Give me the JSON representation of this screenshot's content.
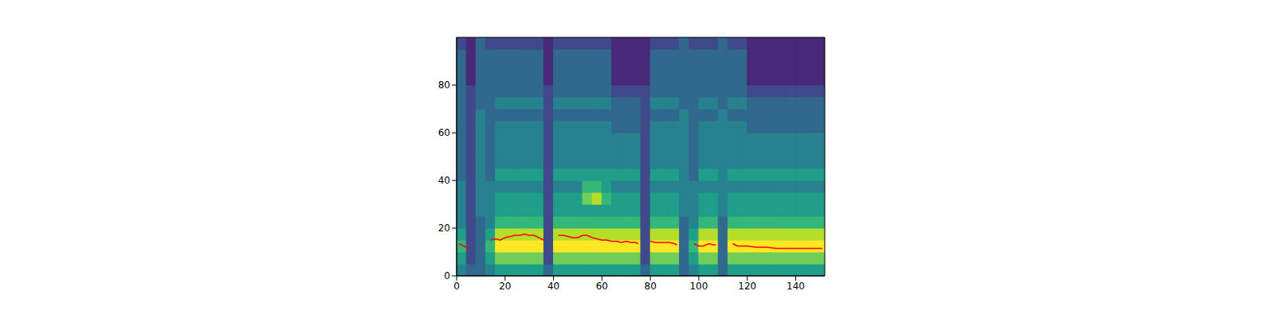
{
  "chart_data": {
    "type": "heatmap",
    "xlim": [
      0,
      152
    ],
    "ylim": [
      0,
      100
    ],
    "xticks": [
      0,
      20,
      40,
      60,
      80,
      100,
      120,
      140
    ],
    "yticks": [
      0,
      20,
      40,
      60,
      80
    ],
    "tick_labels": true,
    "cells": {
      "x_edges": [
        0,
        4,
        8,
        12,
        16,
        20,
        24,
        28,
        32,
        36,
        40,
        44,
        48,
        52,
        56,
        60,
        64,
        68,
        72,
        76,
        80,
        84,
        88,
        92,
        96,
        100,
        104,
        108,
        112,
        116,
        120,
        124,
        128,
        132,
        136,
        140,
        144,
        148,
        152
      ],
      "y_edges": [
        0,
        5,
        10,
        15,
        20,
        25,
        30,
        35,
        40,
        45,
        50,
        55,
        60,
        65,
        70,
        75,
        80,
        85,
        90,
        95,
        100
      ],
      "color_range": [
        0,
        9
      ],
      "values": [
        [
          4,
          3,
          3,
          4,
          5,
          5,
          5,
          5,
          5,
          3,
          5,
          5,
          5,
          5,
          5,
          5,
          5,
          5,
          5,
          3,
          5,
          5,
          5,
          3,
          4,
          5,
          5,
          3,
          5,
          5,
          5,
          5,
          5,
          5,
          5,
          5,
          5,
          5
        ],
        [
          5,
          2,
          3,
          5,
          7,
          7,
          7,
          7,
          7,
          2,
          7,
          7,
          7,
          7,
          7,
          7,
          7,
          7,
          7,
          2,
          7,
          7,
          7,
          3,
          5,
          7,
          7,
          3,
          7,
          7,
          7,
          7,
          7,
          7,
          7,
          7,
          7,
          7
        ],
        [
          6,
          2,
          3,
          6,
          9,
          9,
          9,
          9,
          9,
          2,
          9,
          9,
          9,
          9,
          9,
          9,
          9,
          9,
          9,
          2,
          9,
          9,
          9,
          3,
          6,
          9,
          9,
          3,
          9,
          9,
          9,
          9,
          9,
          9,
          9,
          9,
          9,
          9
        ],
        [
          5,
          2,
          3,
          5,
          8,
          8,
          8,
          8,
          8,
          2,
          8,
          8,
          8,
          8,
          8,
          8,
          8,
          8,
          8,
          2,
          8,
          8,
          8,
          3,
          5,
          8,
          8,
          3,
          8,
          8,
          8,
          8,
          8,
          8,
          8,
          8,
          8,
          8
        ],
        [
          4,
          2,
          3,
          4,
          6,
          6,
          6,
          6,
          6,
          2,
          6,
          6,
          6,
          6,
          6,
          6,
          6,
          6,
          6,
          2,
          6,
          6,
          6,
          3,
          4,
          6,
          6,
          3,
          6,
          6,
          6,
          6,
          6,
          6,
          6,
          6,
          6,
          6
        ],
        [
          4,
          2,
          4,
          4,
          5,
          5,
          5,
          5,
          5,
          2,
          5,
          5,
          5,
          5,
          5,
          5,
          5,
          5,
          5,
          2,
          5,
          5,
          5,
          4,
          4,
          5,
          5,
          4,
          5,
          5,
          5,
          5,
          5,
          5,
          5,
          5,
          5,
          5
        ],
        [
          4,
          2,
          4,
          4,
          5,
          5,
          5,
          5,
          5,
          2,
          5,
          5,
          5,
          7,
          8,
          6,
          5,
          5,
          5,
          2,
          5,
          5,
          5,
          4,
          4,
          5,
          5,
          4,
          5,
          5,
          5,
          5,
          5,
          5,
          5,
          5,
          5,
          5
        ],
        [
          4,
          2,
          4,
          4,
          4,
          4,
          4,
          4,
          4,
          2,
          4,
          4,
          4,
          6,
          6,
          5,
          4,
          4,
          4,
          2,
          4,
          4,
          4,
          4,
          4,
          4,
          4,
          4,
          4,
          4,
          4,
          4,
          4,
          4,
          4,
          4,
          4,
          4
        ],
        [
          3,
          2,
          4,
          3,
          5,
          5,
          5,
          5,
          5,
          2,
          5,
          5,
          5,
          5,
          5,
          5,
          5,
          5,
          5,
          2,
          5,
          5,
          5,
          4,
          3,
          5,
          5,
          4,
          5,
          5,
          5,
          5,
          5,
          5,
          5,
          5,
          5,
          5
        ],
        [
          3,
          2,
          4,
          3,
          4,
          4,
          4,
          4,
          4,
          2,
          4,
          4,
          4,
          4,
          4,
          4,
          4,
          4,
          4,
          2,
          4,
          4,
          4,
          4,
          3,
          4,
          4,
          4,
          4,
          4,
          4,
          4,
          4,
          4,
          4,
          4,
          4,
          4
        ],
        [
          3,
          2,
          4,
          3,
          4,
          4,
          4,
          4,
          4,
          2,
          4,
          4,
          4,
          4,
          4,
          4,
          4,
          4,
          4,
          2,
          4,
          4,
          4,
          4,
          3,
          4,
          4,
          4,
          4,
          4,
          4,
          4,
          4,
          4,
          4,
          4,
          4,
          4
        ],
        [
          3,
          2,
          4,
          3,
          4,
          4,
          4,
          4,
          4,
          2,
          4,
          4,
          4,
          4,
          4,
          4,
          4,
          4,
          4,
          2,
          4,
          4,
          4,
          4,
          3,
          4,
          4,
          4,
          4,
          4,
          4,
          4,
          4,
          4,
          4,
          4,
          4,
          4
        ],
        [
          3,
          2,
          4,
          3,
          4,
          4,
          4,
          4,
          4,
          2,
          4,
          4,
          4,
          4,
          4,
          4,
          3,
          3,
          3,
          2,
          4,
          4,
          4,
          4,
          3,
          4,
          4,
          4,
          4,
          4,
          3,
          3,
          3,
          3,
          3,
          3,
          3,
          3
        ],
        [
          3,
          2,
          4,
          3,
          3,
          3,
          3,
          3,
          3,
          2,
          3,
          3,
          3,
          3,
          3,
          3,
          3,
          3,
          3,
          2,
          3,
          3,
          3,
          4,
          3,
          3,
          3,
          4,
          3,
          3,
          3,
          3,
          3,
          3,
          3,
          3,
          3,
          3
        ],
        [
          3,
          2,
          3,
          3,
          4,
          4,
          4,
          4,
          4,
          2,
          4,
          4,
          4,
          4,
          4,
          4,
          3,
          3,
          3,
          2,
          4,
          4,
          4,
          3,
          3,
          4,
          4,
          3,
          4,
          4,
          3,
          3,
          3,
          3,
          3,
          3,
          3,
          3
        ],
        [
          3,
          2,
          3,
          3,
          3,
          3,
          3,
          3,
          3,
          2,
          3,
          3,
          3,
          3,
          3,
          3,
          2,
          2,
          2,
          2,
          3,
          3,
          3,
          3,
          3,
          3,
          3,
          3,
          3,
          3,
          2,
          2,
          2,
          2,
          2,
          2,
          2,
          2
        ],
        [
          3,
          1,
          3,
          3,
          3,
          3,
          3,
          3,
          3,
          1,
          3,
          3,
          3,
          3,
          3,
          3,
          1,
          1,
          1,
          1,
          3,
          3,
          3,
          3,
          3,
          3,
          3,
          3,
          3,
          3,
          1,
          1,
          1,
          1,
          1,
          1,
          1,
          1
        ],
        [
          3,
          1,
          3,
          3,
          3,
          3,
          3,
          3,
          3,
          1,
          3,
          3,
          3,
          3,
          3,
          3,
          1,
          1,
          1,
          1,
          3,
          3,
          3,
          3,
          3,
          3,
          3,
          3,
          3,
          3,
          1,
          1,
          1,
          1,
          1,
          1,
          1,
          1
        ],
        [
          3,
          1,
          3,
          3,
          3,
          3,
          3,
          3,
          3,
          1,
          3,
          3,
          3,
          3,
          3,
          3,
          1,
          1,
          1,
          1,
          3,
          3,
          3,
          3,
          3,
          3,
          3,
          3,
          3,
          3,
          1,
          1,
          1,
          1,
          1,
          1,
          1,
          1
        ],
        [
          2,
          1,
          3,
          2,
          2,
          2,
          2,
          2,
          2,
          1,
          2,
          2,
          2,
          2,
          2,
          2,
          1,
          1,
          1,
          1,
          2,
          2,
          2,
          3,
          2,
          2,
          2,
          3,
          2,
          2,
          1,
          1,
          1,
          1,
          1,
          1,
          1,
          1
        ]
      ]
    },
    "series": [
      {
        "type": "line",
        "color": "#ff0000",
        "x": [
          1,
          3,
          5,
          9,
          14,
          16,
          18,
          20,
          22,
          24,
          26,
          28,
          30,
          32,
          34,
          36,
          39,
          42,
          44,
          46,
          48,
          50,
          52,
          54,
          56,
          58,
          60,
          62,
          64,
          66,
          68,
          70,
          72,
          74,
          75,
          78,
          80,
          82,
          84,
          86,
          88,
          90,
          91,
          95,
          98,
          100,
          102,
          104,
          106,
          107,
          110,
          114,
          116,
          118,
          120,
          124,
          128,
          132,
          136,
          140,
          144,
          148,
          151
        ],
        "values": [
          13.5,
          12.5,
          11.5,
          null,
          15,
          15.5,
          15,
          16,
          16.5,
          17,
          17,
          17.5,
          17,
          17,
          16,
          15,
          null,
          17,
          17,
          16.5,
          16,
          16,
          17,
          17,
          16,
          15.5,
          15,
          15,
          14.5,
          14.5,
          14,
          14.5,
          14,
          14,
          13.5,
          null,
          14.5,
          14,
          14,
          14,
          14,
          13.5,
          13,
          null,
          13.5,
          12.5,
          12.5,
          13.5,
          13,
          13,
          null,
          13.5,
          12.5,
          12.5,
          12.5,
          12,
          12,
          11.5,
          11.5,
          11.5,
          11.5,
          11.5,
          11.5
        ]
      }
    ]
  }
}
